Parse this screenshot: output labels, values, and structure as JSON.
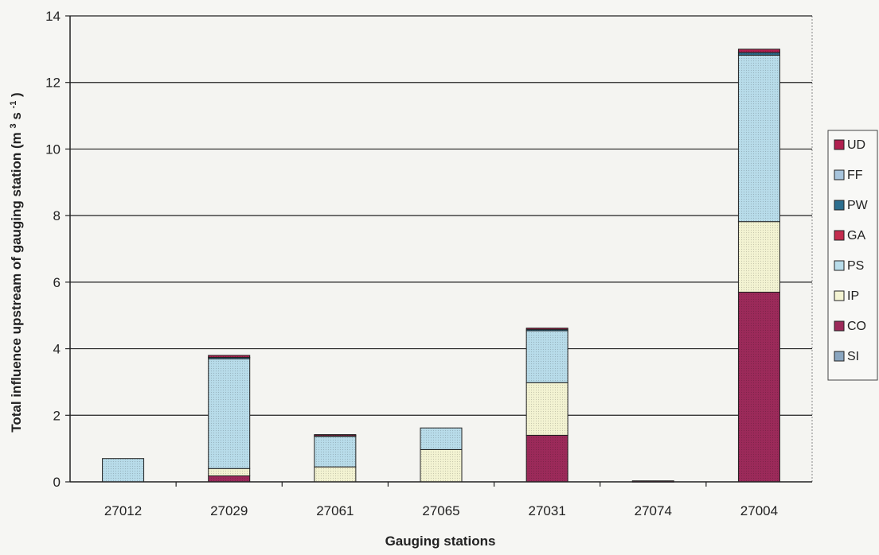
{
  "chart_data": {
    "type": "bar",
    "stacked": true,
    "xlabel": "Gauging stations",
    "ylabel_main": "Total influence upstream of gauging station (m",
    "ylabel_sup1": "3",
    "ylabel_mid": " s",
    "ylabel_sup2": "-1",
    "ylabel_end": ")",
    "ylim": [
      0,
      14
    ],
    "yticks": [
      "0",
      "2",
      "4",
      "6",
      "8",
      "10",
      "12",
      "14"
    ],
    "grid": true,
    "legend_position": "right",
    "categories": [
      "27012",
      "27029",
      "27061",
      "27065",
      "27031",
      "27074",
      "27004"
    ],
    "series": [
      {
        "name": "SI",
        "color": "#8aa6c0",
        "values": [
          0,
          0,
          0,
          0,
          0,
          0,
          0
        ]
      },
      {
        "name": "CO",
        "color": "#9c2a5a",
        "values": [
          0,
          0.18,
          0,
          0,
          1.4,
          0.03,
          5.7
        ]
      },
      {
        "name": "IP",
        "color": "#f3f3d2",
        "values": [
          0,
          0.22,
          0.45,
          0.97,
          1.58,
          0,
          2.12
        ]
      },
      {
        "name": "PS",
        "color": "#b8dcea",
        "values": [
          0.7,
          3.3,
          0.93,
          0.65,
          1.56,
          0,
          5.0
        ]
      },
      {
        "name": "GA",
        "color": "#c42c4e",
        "values": [
          0,
          0,
          0,
          0,
          0,
          0,
          0
        ]
      },
      {
        "name": "PW",
        "color": "#2c6e8e",
        "values": [
          0,
          0.04,
          0.02,
          0,
          0.04,
          0,
          0.08
        ]
      },
      {
        "name": "FF",
        "color": "#a7c4dc",
        "values": [
          0,
          0,
          0,
          0,
          0,
          0,
          0
        ]
      },
      {
        "name": "UD",
        "color": "#b01f4f",
        "values": [
          0,
          0.06,
          0.02,
          0,
          0.04,
          0,
          0.1
        ]
      }
    ],
    "legend_order": [
      "UD",
      "FF",
      "PW",
      "GA",
      "PS",
      "IP",
      "CO",
      "SI"
    ]
  }
}
